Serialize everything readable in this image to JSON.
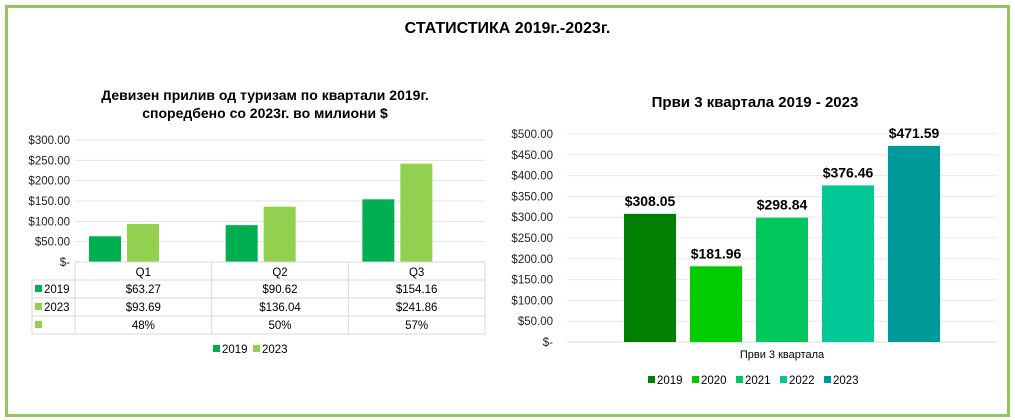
{
  "title": "СТАТИСТИКА 2019г.-2023г.",
  "colors": {
    "border": "#92c75a"
  },
  "chart_data": [
    {
      "type": "bar",
      "title_line1": "Девизен прилив од туризам по квартали 2019г.",
      "title_line2": "споредбено со 2023г. во милиони $",
      "categories": [
        "Q1",
        "Q2",
        "Q3"
      ],
      "series": [
        {
          "name": "2019",
          "color": "#00b050",
          "values": [
            63.27,
            90.62,
            154.16
          ],
          "labels": [
            "$63.27",
            "$90.62",
            "$154.16"
          ]
        },
        {
          "name": "2023",
          "color": "#92d050",
          "values": [
            93.69,
            136.04,
            241.86
          ],
          "labels": [
            "$93.69",
            "$136.04",
            "$241.86"
          ]
        }
      ],
      "extra_row": {
        "name": "",
        "color": "#92d050",
        "labels": [
          "48%",
          "50%",
          "57%"
        ]
      },
      "yticks": [
        "$-",
        "$50.00",
        "$100.00",
        "$150.00",
        "$200.00",
        "$250.00",
        "$300.00"
      ],
      "ylim": [
        0,
        300
      ],
      "grid": true,
      "legend": "bottom",
      "data_table": true
    },
    {
      "type": "bar",
      "title": "Први 3 квартала 2019 - 2023",
      "category": "Први 3 квартала",
      "series": [
        {
          "name": "2019",
          "color": "#007f00",
          "value": 308.05,
          "label": "$308.05"
        },
        {
          "name": "2020",
          "color": "#00cc00",
          "value": 181.96,
          "label": "$181.96"
        },
        {
          "name": "2021",
          "color": "#00c85a",
          "value": 298.84,
          "label": "$298.84"
        },
        {
          "name": "2022",
          "color": "#00c896",
          "value": 376.46,
          "label": "$376.46"
        },
        {
          "name": "2023",
          "color": "#009999",
          "value": 471.59,
          "label": "$471.59"
        }
      ],
      "yticks": [
        "$-",
        "$50.00",
        "$100.00",
        "$150.00",
        "$200.00",
        "$250.00",
        "$300.00",
        "$350.00",
        "$400.00",
        "$450.00",
        "$500.00"
      ],
      "ylim": [
        0,
        500
      ],
      "grid": true,
      "legend": "bottom"
    }
  ]
}
